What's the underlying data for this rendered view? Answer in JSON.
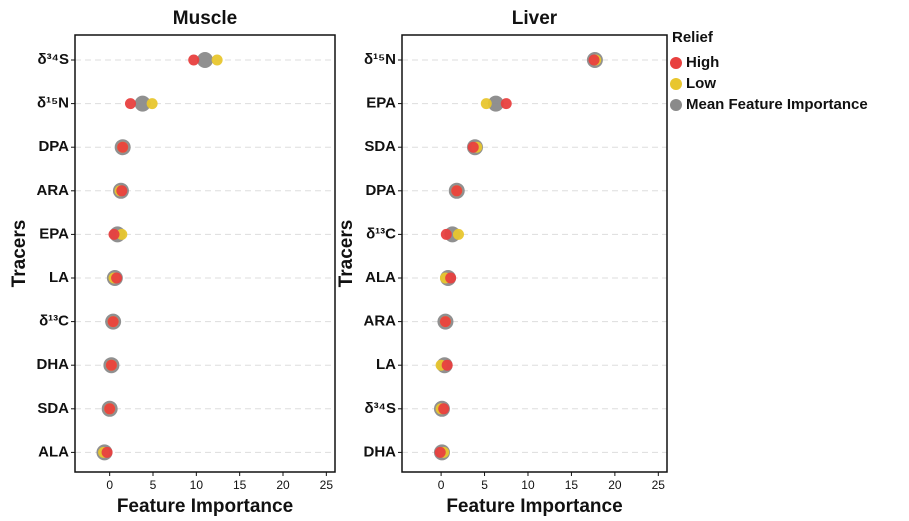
{
  "chart_data": [
    {
      "type": "dot",
      "title": "Muscle",
      "xlabel": "Feature Importance",
      "ylabel": "Tracers",
      "categories": [
        "δ³⁴S",
        "δ¹⁵N",
        "DPA",
        "ARA",
        "EPA",
        "LA",
        "δ¹³C",
        "DHA",
        "SDA",
        "ALA"
      ],
      "series": [
        {
          "name": "High",
          "color": "#e8403f",
          "values": [
            9.7,
            2.4,
            1.5,
            1.4,
            0.5,
            0.8,
            0.4,
            0.2,
            0.0,
            -0.3
          ]
        },
        {
          "name": "Low",
          "color": "#e8c62e",
          "values": [
            12.4,
            4.9,
            1.5,
            1.2,
            1.4,
            0.5,
            0.4,
            0.2,
            0.0,
            -0.7
          ]
        },
        {
          "name": "Mean Feature Importance",
          "color": "#8a8a8a",
          "values": [
            11.0,
            3.8,
            1.5,
            1.3,
            0.9,
            0.6,
            0.4,
            0.2,
            0.0,
            -0.6
          ]
        }
      ],
      "xlim": [
        -4,
        26
      ],
      "xticks": [
        0,
        5,
        10,
        15,
        20,
        25
      ],
      "grid": true
    },
    {
      "type": "dot",
      "title": "Liver",
      "xlabel": "Feature Importance",
      "ylabel": "Tracers",
      "legend_title": "Relief",
      "categories": [
        "δ¹⁵N",
        "EPA",
        "SDA",
        "DPA",
        "δ¹³C",
        "ALA",
        "ARA",
        "LA",
        "δ³⁴S",
        "DHA"
      ],
      "series": [
        {
          "name": "High",
          "color": "#e8403f",
          "values": [
            17.6,
            7.5,
            3.7,
            1.8,
            0.6,
            1.1,
            0.5,
            0.7,
            0.3,
            -0.1
          ]
        },
        {
          "name": "Low",
          "color": "#e8c62e",
          "values": [
            17.8,
            5.2,
            4.1,
            1.8,
            2.0,
            0.5,
            0.5,
            0.0,
            0.0,
            0.3
          ]
        },
        {
          "name": "Mean Feature Importance",
          "color": "#8a8a8a",
          "values": [
            17.7,
            6.3,
            3.9,
            1.8,
            1.3,
            0.8,
            0.5,
            0.4,
            0.1,
            0.1
          ]
        }
      ],
      "xlim": [
        -4.5,
        26
      ],
      "xticks": [
        0,
        5,
        10,
        15,
        20,
        25
      ],
      "grid": true
    }
  ]
}
